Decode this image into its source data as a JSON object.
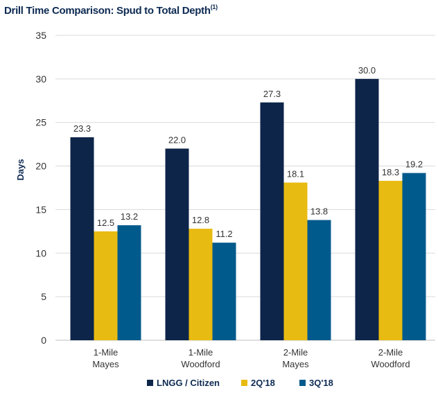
{
  "chart_data": {
    "type": "bar",
    "title": "Drill Time Comparison: Spud to Total Depth",
    "title_superscript": "(1)",
    "ylabel": "Days",
    "xlabel": "",
    "ylim": [
      0,
      35
    ],
    "yticks": [
      0,
      5,
      10,
      15,
      20,
      25,
      30,
      35
    ],
    "grid": true,
    "legend_position": "bottom",
    "categories": [
      [
        "1-Mile",
        "Mayes"
      ],
      [
        "1-Mile",
        "Woodford"
      ],
      [
        "2-Mile",
        "Mayes"
      ],
      [
        "2-Mile",
        "Woodford"
      ]
    ],
    "series": [
      {
        "name": "LNGG / Citizen",
        "color": "#0d2549",
        "values": [
          23.3,
          22.0,
          27.3,
          30.0
        ],
        "labels": [
          "23.3",
          "22.0",
          "27.3",
          "30.0"
        ]
      },
      {
        "name": "2Q'18",
        "color": "#e8bb12",
        "values": [
          12.5,
          12.8,
          18.1,
          18.3
        ],
        "labels": [
          "12.5",
          "12.8",
          "18.1",
          "18.3"
        ]
      },
      {
        "name": "3Q'18",
        "color": "#015a8c",
        "values": [
          13.2,
          11.2,
          13.8,
          19.2
        ],
        "labels": [
          "13.2",
          "11.2",
          "13.8",
          "19.2"
        ]
      }
    ]
  }
}
